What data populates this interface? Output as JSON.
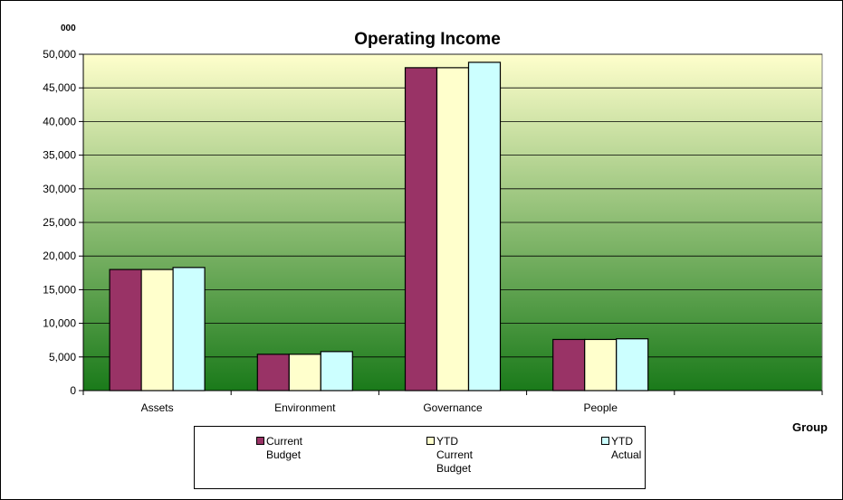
{
  "chart_data": {
    "type": "bar",
    "title": "Operating Income",
    "unit_label": "000",
    "xlabel": "Group",
    "ylabel": "",
    "categories": [
      "Assets",
      "Environment",
      "Governance",
      "People"
    ],
    "ylim": [
      0,
      50000
    ],
    "ytick_step": 5000,
    "ytick_labels": [
      "0",
      "5,000",
      "10,000",
      "15,000",
      "20,000",
      "25,000",
      "30,000",
      "35,000",
      "40,000",
      "45,000",
      "50,000"
    ],
    "series": [
      {
        "name": "Current Budget",
        "legend_label": "Current\nBudget",
        "color": "#993366",
        "values": [
          18000,
          5400,
          48000,
          7600
        ]
      },
      {
        "name": "YTD Current Budget",
        "legend_label": "YTD\nCurrent\nBudget",
        "color": "#FFFFCC",
        "values": [
          18000,
          5400,
          48000,
          7600
        ]
      },
      {
        "name": "YTD Actual",
        "legend_label": "YTD\nActual",
        "color": "#CCFFFF",
        "values": [
          18300,
          5800,
          48800,
          7700
        ]
      }
    ],
    "grid": true,
    "legend_position": "bottom",
    "plot_gradient": [
      "#FFFFCC",
      "#1A7A1A"
    ]
  }
}
